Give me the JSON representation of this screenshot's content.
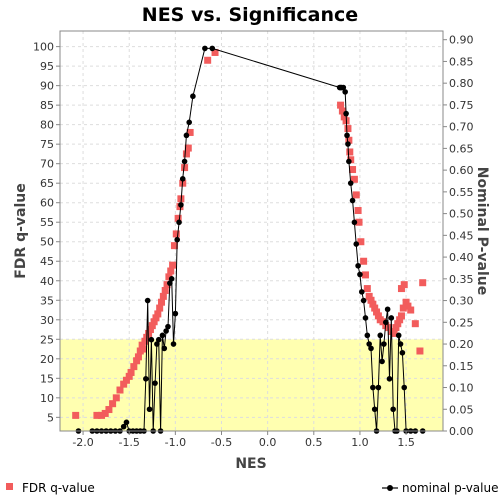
{
  "chart_data": {
    "type": "scatter",
    "title": "NES vs. Significance",
    "xlabel": "NES",
    "ylabel_left": "FDR q-value",
    "ylabel_right": "Nominal P-value",
    "xlim": [
      -2.25,
      1.9
    ],
    "ylim_left": [
      1.5,
      104
    ],
    "ylim_right": [
      0.0,
      0.92
    ],
    "x_ticks": [
      "-2.0",
      "-1.5",
      "-1.0",
      "-0.5",
      "0.0",
      "0.5",
      "1.0",
      "1.5"
    ],
    "x_tick_values": [
      -2.0,
      -1.5,
      -1.0,
      -0.5,
      0.0,
      0.5,
      1.0,
      1.5
    ],
    "y_left_ticks": [
      "5",
      "10",
      "15",
      "20",
      "25",
      "30",
      "35",
      "40",
      "45",
      "50",
      "55",
      "60",
      "65",
      "70",
      "75",
      "80",
      "85",
      "90",
      "95",
      "100"
    ],
    "y_left_tick_values": [
      5,
      10,
      15,
      20,
      25,
      30,
      35,
      40,
      45,
      50,
      55,
      60,
      65,
      70,
      75,
      80,
      85,
      90,
      95,
      100
    ],
    "y_right_ticks": [
      "0.00",
      "0.05",
      "0.10",
      "0.15",
      "0.20",
      "0.25",
      "0.30",
      "0.35",
      "0.40",
      "0.45",
      "0.50",
      "0.55",
      "0.60",
      "0.65",
      "0.70",
      "0.75",
      "0.80",
      "0.85",
      "0.90"
    ],
    "y_right_tick_values": [
      0.0,
      0.05,
      0.1,
      0.15,
      0.2,
      0.25,
      0.3,
      0.35,
      0.4,
      0.45,
      0.5,
      0.55,
      0.6,
      0.65,
      0.7,
      0.75,
      0.8,
      0.85,
      0.9
    ],
    "significance_band": {
      "from": 1.5,
      "to": 25,
      "color": "#ffffb0"
    },
    "grid": true,
    "colors": {
      "fdr": "#f25c5c",
      "nominal": "#000000"
    },
    "series": [
      {
        "name": "FDR q-value",
        "axis": "left",
        "marker": "square",
        "points": [
          [
            -2.08,
            5.5
          ],
          [
            -1.85,
            5.5
          ],
          [
            -1.8,
            5.5
          ],
          [
            -1.76,
            6.0
          ],
          [
            -1.72,
            7.0
          ],
          [
            -1.68,
            8.5
          ],
          [
            -1.64,
            10.0
          ],
          [
            -1.6,
            12.0
          ],
          [
            -1.56,
            13.5
          ],
          [
            -1.53,
            14.5
          ],
          [
            -1.5,
            15.5
          ],
          [
            -1.48,
            16.5
          ],
          [
            -1.45,
            18.0
          ],
          [
            -1.42,
            19.5
          ],
          [
            -1.4,
            20.5
          ],
          [
            -1.38,
            22.0
          ],
          [
            -1.36,
            23.5
          ],
          [
            -1.35,
            22.5
          ],
          [
            -1.33,
            24.5
          ],
          [
            -1.31,
            25.5
          ],
          [
            -1.29,
            26.5
          ],
          [
            -1.27,
            27.5
          ],
          [
            -1.25,
            28.5
          ],
          [
            -1.23,
            29.5
          ],
          [
            -1.21,
            30.5
          ],
          [
            -1.19,
            31.5
          ],
          [
            -1.17,
            33.0
          ],
          [
            -1.15,
            34.5
          ],
          [
            -1.13,
            36.0
          ],
          [
            -1.11,
            37.5
          ],
          [
            -1.09,
            39.0
          ],
          [
            -1.07,
            41.0
          ],
          [
            -1.05,
            42.5
          ],
          [
            -1.03,
            44.0
          ],
          [
            -1.01,
            49.0
          ],
          [
            -0.99,
            52.0
          ],
          [
            -0.97,
            56.0
          ],
          [
            -0.95,
            59.0
          ],
          [
            -0.94,
            61.0
          ],
          [
            -0.92,
            65.0
          ],
          [
            -0.9,
            69.0
          ],
          [
            -0.88,
            72.5
          ],
          [
            -0.86,
            74.0
          ],
          [
            -0.84,
            78.0
          ],
          [
            -0.65,
            96.5
          ],
          [
            -0.57,
            98.5
          ],
          [
            0.79,
            85.0
          ],
          [
            0.81,
            83.5
          ],
          [
            0.83,
            82.0
          ],
          [
            0.85,
            81.0
          ],
          [
            0.87,
            79.0
          ],
          [
            0.88,
            76.0
          ],
          [
            0.89,
            73.0
          ],
          [
            0.9,
            71.0
          ],
          [
            0.92,
            68.5
          ],
          [
            0.94,
            66.0
          ],
          [
            0.96,
            62.0
          ],
          [
            0.98,
            58.0
          ],
          [
            0.99,
            55.0
          ],
          [
            1.01,
            50.0
          ],
          [
            1.04,
            45.0
          ],
          [
            1.06,
            41.5
          ],
          [
            1.08,
            38.0
          ],
          [
            1.1,
            36.0
          ],
          [
            1.12,
            35.0
          ],
          [
            1.14,
            34.0
          ],
          [
            1.16,
            33.0
          ],
          [
            1.18,
            32.0
          ],
          [
            1.2,
            31.0
          ],
          [
            1.22,
            30.0
          ],
          [
            1.25,
            29.5
          ],
          [
            1.28,
            28.5
          ],
          [
            1.31,
            28.0
          ],
          [
            1.34,
            27.0
          ],
          [
            1.37,
            26.5
          ],
          [
            1.39,
            28.0
          ],
          [
            1.41,
            29.0
          ],
          [
            1.43,
            30.0
          ],
          [
            1.45,
            31.0
          ],
          [
            1.47,
            33.0
          ],
          [
            1.5,
            34.5
          ],
          [
            1.52,
            33.5
          ],
          [
            1.55,
            32.5
          ],
          [
            1.45,
            38.0
          ],
          [
            1.48,
            39.0
          ],
          [
            1.6,
            29.0
          ],
          [
            1.65,
            22.0
          ],
          [
            1.68,
            39.5
          ]
        ]
      },
      {
        "name": "nominal p-value",
        "axis": "right",
        "marker": "circle",
        "line": true,
        "points": [
          [
            -2.05,
            0.0
          ],
          [
            -1.9,
            0.0
          ],
          [
            -1.85,
            0.0
          ],
          [
            -1.8,
            0.0
          ],
          [
            -1.75,
            0.0
          ],
          [
            -1.7,
            0.0
          ],
          [
            -1.65,
            0.0
          ],
          [
            -1.6,
            0.0
          ],
          [
            -1.56,
            0.01
          ],
          [
            -1.53,
            0.02
          ],
          [
            -1.5,
            0.0
          ],
          [
            -1.46,
            0.0
          ],
          [
            -1.42,
            0.0
          ],
          [
            -1.38,
            0.0
          ],
          [
            -1.34,
            0.0
          ],
          [
            -1.32,
            0.12
          ],
          [
            -1.3,
            0.3
          ],
          [
            -1.28,
            0.05
          ],
          [
            -1.26,
            0.21
          ],
          [
            -1.24,
            0.0
          ],
          [
            -1.22,
            0.11
          ],
          [
            -1.2,
            0.2
          ],
          [
            -1.18,
            0.21
          ],
          [
            -1.16,
            0.0
          ],
          [
            -1.14,
            0.22
          ],
          [
            -1.12,
            0.19
          ],
          [
            -1.1,
            0.23
          ],
          [
            -1.08,
            0.24
          ],
          [
            -1.06,
            0.34
          ],
          [
            -1.04,
            0.35
          ],
          [
            -1.02,
            0.2
          ],
          [
            -1.0,
            0.27
          ],
          [
            -0.98,
            0.44
          ],
          [
            -0.96,
            0.48
          ],
          [
            -0.94,
            0.52
          ],
          [
            -0.92,
            0.58
          ],
          [
            -0.9,
            0.62
          ],
          [
            -0.88,
            0.68
          ],
          [
            -0.85,
            0.71
          ],
          [
            -0.81,
            0.77
          ],
          [
            -0.68,
            0.88
          ],
          [
            -0.6,
            0.88
          ],
          [
            0.78,
            0.79
          ],
          [
            0.79,
            0.79
          ],
          [
            0.8,
            0.79
          ],
          [
            0.82,
            0.79
          ],
          [
            0.84,
            0.78
          ],
          [
            0.85,
            0.73
          ],
          [
            0.86,
            0.68
          ],
          [
            0.87,
            0.66
          ],
          [
            0.88,
            0.62
          ],
          [
            0.9,
            0.57
          ],
          [
            0.92,
            0.53
          ],
          [
            0.94,
            0.48
          ],
          [
            0.96,
            0.43
          ],
          [
            0.98,
            0.38
          ],
          [
            1.0,
            0.36
          ],
          [
            1.02,
            0.32
          ],
          [
            1.04,
            0.3
          ],
          [
            1.06,
            0.26
          ],
          [
            1.08,
            0.22
          ],
          [
            1.1,
            0.2
          ],
          [
            1.12,
            0.19
          ],
          [
            1.14,
            0.1
          ],
          [
            1.16,
            0.05
          ],
          [
            1.18,
            0.0
          ],
          [
            1.2,
            0.1
          ],
          [
            1.22,
            0.22
          ],
          [
            1.24,
            0.16
          ],
          [
            1.26,
            0.2
          ],
          [
            1.28,
            0.25
          ],
          [
            1.3,
            0.28
          ],
          [
            1.32,
            0.12
          ],
          [
            1.34,
            0.26
          ],
          [
            1.36,
            0.05
          ],
          [
            1.38,
            0.0
          ],
          [
            1.4,
            0.0
          ],
          [
            1.42,
            0.22
          ],
          [
            1.44,
            0.2
          ],
          [
            1.46,
            0.18
          ],
          [
            1.48,
            0.1
          ],
          [
            1.5,
            0.0
          ],
          [
            1.55,
            0.0
          ],
          [
            1.6,
            0.0
          ],
          [
            1.68,
            0.0
          ]
        ]
      }
    ]
  }
}
